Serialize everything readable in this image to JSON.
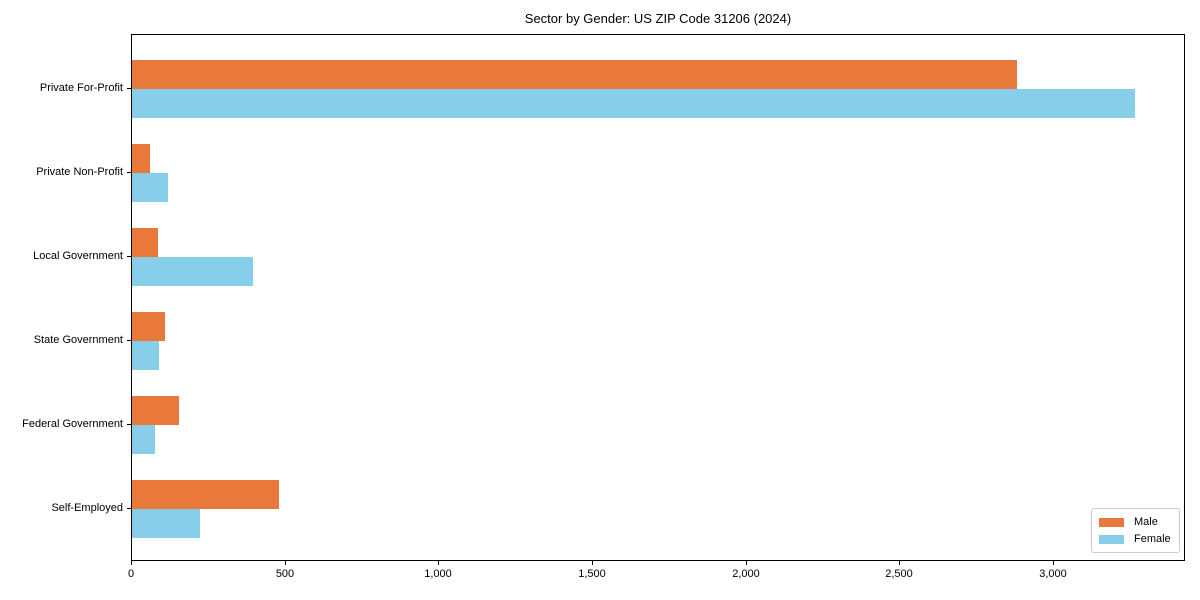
{
  "title": "Sector by Gender: US ZIP Code 31206 (2024)",
  "chart_data": {
    "type": "bar",
    "orientation": "horizontal",
    "title": "Sector by Gender: US ZIP Code 31206 (2024)",
    "categories": [
      "Private For-Profit",
      "Private Non-Profit",
      "Local Government",
      "State Government",
      "Federal Government",
      "Self-Employed"
    ],
    "series": [
      {
        "name": "Male",
        "color": "#e8793b",
        "values": [
          2880,
          60,
          85,
          108,
          152,
          478
        ]
      },
      {
        "name": "Female",
        "color": "#87ceeb",
        "values": [
          3265,
          118,
          395,
          89,
          76,
          222
        ]
      }
    ],
    "xlabel": "",
    "ylabel": "",
    "xlim": [
      0,
      3430
    ],
    "x_ticks": [
      0,
      500,
      1000,
      1500,
      2000,
      2500,
      3000
    ],
    "x_tick_labels": [
      "0",
      "500",
      "1,000",
      "1,500",
      "2,000",
      "2,500",
      "3,000"
    ],
    "grid": false,
    "legend_position": "lower right",
    "background_color": "#ffffff",
    "spine_color": "#000000",
    "legend_border_color": "#cccccc"
  }
}
